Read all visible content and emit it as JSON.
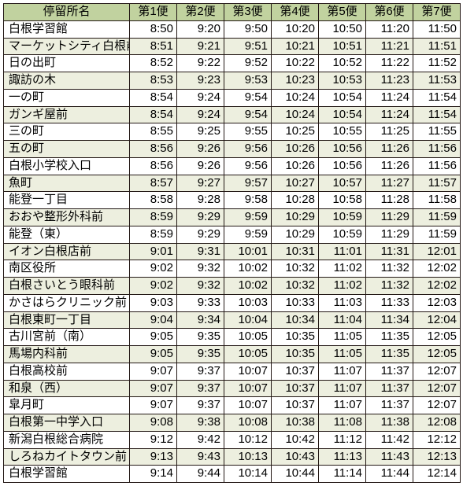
{
  "table": {
    "type": "table",
    "header_bg": "#c1d29f",
    "row_bg_odd": "#ffffff",
    "row_bg_even": "#edefdf",
    "border_color": "#231815",
    "font_size": 15,
    "columns": [
      {
        "key": "stop",
        "label": "停留所名",
        "width": 160,
        "align": "left"
      },
      {
        "key": "t1",
        "label": "第1便",
        "width": 60,
        "align": "right"
      },
      {
        "key": "t2",
        "label": "第2便",
        "width": 60,
        "align": "right"
      },
      {
        "key": "t3",
        "label": "第3便",
        "width": 60,
        "align": "right"
      },
      {
        "key": "t4",
        "label": "第4便",
        "width": 60,
        "align": "right"
      },
      {
        "key": "t5",
        "label": "第5便",
        "width": 60,
        "align": "right"
      },
      {
        "key": "t6",
        "label": "第6便",
        "width": 60,
        "align": "right"
      },
      {
        "key": "t7",
        "label": "第7便",
        "width": 60,
        "align": "right"
      }
    ],
    "rows": [
      {
        "stop": "白根学習館",
        "t": [
          "8:50",
          "9:20",
          "9:50",
          "10:20",
          "10:50",
          "11:20",
          "11:50"
        ]
      },
      {
        "stop": "マーケットシティ白根前",
        "t": [
          "8:51",
          "9:21",
          "9:51",
          "10:21",
          "10:51",
          "11:21",
          "11:51"
        ]
      },
      {
        "stop": "日の出町",
        "t": [
          "8:52",
          "9:22",
          "9:52",
          "10:22",
          "10:52",
          "11:22",
          "11:52"
        ]
      },
      {
        "stop": "諏訪の木",
        "t": [
          "8:53",
          "9:23",
          "9:53",
          "10:23",
          "10:53",
          "11:23",
          "11:53"
        ]
      },
      {
        "stop": "一の町",
        "t": [
          "8:54",
          "9:24",
          "9:54",
          "10:24",
          "10:54",
          "11:24",
          "11:54"
        ]
      },
      {
        "stop": "ガンギ屋前",
        "t": [
          "8:54",
          "9:24",
          "9:54",
          "10:24",
          "10:54",
          "11:24",
          "11:54"
        ]
      },
      {
        "stop": "三の町",
        "t": [
          "8:55",
          "9:25",
          "9:55",
          "10:25",
          "10:55",
          "11:25",
          "11:55"
        ]
      },
      {
        "stop": "五の町",
        "t": [
          "8:56",
          "9:26",
          "9:56",
          "10:26",
          "10:56",
          "11:26",
          "11:56"
        ]
      },
      {
        "stop": "白根小学校入口",
        "t": [
          "8:56",
          "9:26",
          "9:56",
          "10:26",
          "10:56",
          "11:26",
          "11:56"
        ]
      },
      {
        "stop": "魚町",
        "t": [
          "8:57",
          "9:27",
          "9:57",
          "10:27",
          "10:57",
          "11:27",
          "11:57"
        ]
      },
      {
        "stop": "能登一丁目",
        "t": [
          "8:58",
          "9:28",
          "9:58",
          "10:28",
          "10:58",
          "11:28",
          "11:58"
        ]
      },
      {
        "stop": "おおや整形外科前",
        "t": [
          "8:59",
          "9:29",
          "9:59",
          "10:29",
          "10:59",
          "11:29",
          "11:59"
        ]
      },
      {
        "stop": "能登（東）",
        "t": [
          "8:59",
          "9:29",
          "9:59",
          "10:29",
          "10:59",
          "11:29",
          "11:59"
        ]
      },
      {
        "stop": "イオン白根店前",
        "t": [
          "9:01",
          "9:31",
          "10:01",
          "10:31",
          "11:01",
          "11:31",
          "12:01"
        ]
      },
      {
        "stop": "南区役所",
        "t": [
          "9:02",
          "9:32",
          "10:02",
          "10:32",
          "11:02",
          "11:32",
          "12:02"
        ]
      },
      {
        "stop": "白根さいとう眼科前",
        "t": [
          "9:02",
          "9:32",
          "10:02",
          "10:32",
          "11:02",
          "11:32",
          "12:02"
        ]
      },
      {
        "stop": "かさはらクリニック前",
        "t": [
          "9:03",
          "9:33",
          "10:03",
          "10:33",
          "11:03",
          "11:33",
          "12:03"
        ]
      },
      {
        "stop": "白根東町一丁目",
        "t": [
          "9:04",
          "9:34",
          "10:04",
          "10:34",
          "11:04",
          "11:34",
          "12:04"
        ]
      },
      {
        "stop": "古川宮前（南）",
        "t": [
          "9:05",
          "9:35",
          "10:05",
          "10:35",
          "11:05",
          "11:35",
          "12:05"
        ]
      },
      {
        "stop": "馬場内科前",
        "t": [
          "9:05",
          "9:35",
          "10:05",
          "10:35",
          "11:05",
          "11:35",
          "12:05"
        ]
      },
      {
        "stop": "白根高校前",
        "t": [
          "9:07",
          "9:37",
          "10:07",
          "10:37",
          "11:07",
          "11:37",
          "12:07"
        ]
      },
      {
        "stop": "和泉（西）",
        "t": [
          "9:07",
          "9:37",
          "10:07",
          "10:37",
          "11:07",
          "11:37",
          "12:07"
        ]
      },
      {
        "stop": "皐月町",
        "t": [
          "9:07",
          "9:37",
          "10:07",
          "10:37",
          "11:07",
          "11:37",
          "12:07"
        ]
      },
      {
        "stop": "白根第一中学入口",
        "t": [
          "9:08",
          "9:38",
          "10:08",
          "10:38",
          "11:08",
          "11:38",
          "12:08"
        ]
      },
      {
        "stop": "新潟白根総合病院",
        "t": [
          "9:12",
          "9:42",
          "10:12",
          "10:42",
          "11:12",
          "11:42",
          "12:12"
        ]
      },
      {
        "stop": "しろねカイトタウン前",
        "t": [
          "9:13",
          "9:43",
          "10:13",
          "10:43",
          "11:13",
          "11:43",
          "12:13"
        ]
      },
      {
        "stop": "白根学習館",
        "t": [
          "9:14",
          "9:44",
          "10:14",
          "10:44",
          "11:14",
          "11:44",
          "12:14"
        ]
      }
    ]
  }
}
